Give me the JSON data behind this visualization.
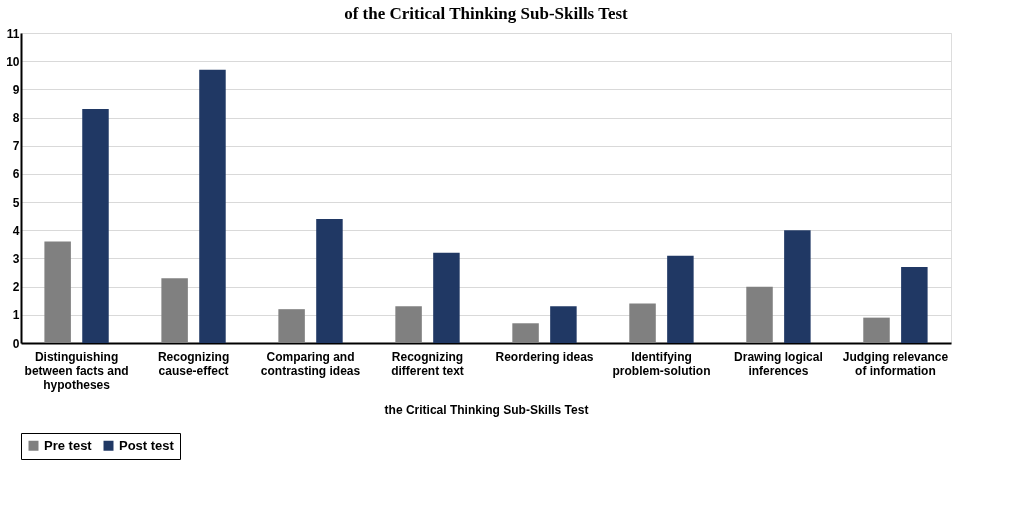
{
  "chart_data": {
    "type": "bar",
    "title": "of the Critical Thinking Sub-Skills Test",
    "xlabel": "the Critical Thinking Sub-Skills Test",
    "categories": [
      "Distinguishing between facts and hypotheses",
      "Recognizing cause-effect",
      "Comparing and contrasting ideas",
      "Recognizing different text",
      "Reordering ideas",
      "Identifying problem-solution",
      "Drawing logical inferences",
      "Judging relevance of information"
    ],
    "series": [
      {
        "name": "Pre test",
        "color": "#808080",
        "values": [
          3.6,
          2.3,
          1.2,
          1.3,
          0.7,
          1.4,
          2.0,
          0.9
        ]
      },
      {
        "name": "Post test",
        "color": "#203864",
        "values": [
          8.3,
          9.7,
          4.4,
          3.2,
          1.3,
          3.1,
          4.0,
          2.7
        ]
      }
    ],
    "ylim": [
      0,
      11
    ],
    "yticks": [
      0,
      1,
      2,
      3,
      4,
      5,
      6,
      7,
      8,
      9,
      10,
      11
    ],
    "grid": "y",
    "legend": "bottom"
  }
}
